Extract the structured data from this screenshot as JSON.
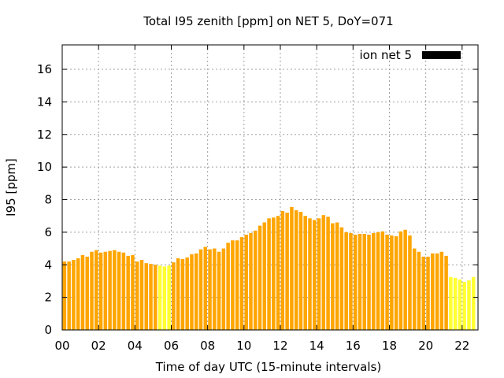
{
  "chart_data": {
    "type": "bar",
    "title": "Total I95 zenith [ppm] on NET 5, DoY=071",
    "xlabel": "Time of day UTC (15-minute intervals)",
    "ylabel": "I95 [ppm]",
    "xlim": [
      0,
      22.875
    ],
    "ylim": [
      0,
      17.5
    ],
    "x_ticks": [
      "00",
      "02",
      "04",
      "06",
      "08",
      "10",
      "12",
      "14",
      "16",
      "18",
      "20",
      "22"
    ],
    "y_ticks": [
      "0",
      "2",
      "4",
      "6",
      "8",
      "10",
      "12",
      "14",
      "16"
    ],
    "grid": true,
    "legend": {
      "position": "top-right",
      "entries": [
        "ion net 5"
      ]
    },
    "colors": {
      "normal": "#ffa500",
      "flagged": "#ffff33",
      "legend": "#000000"
    },
    "interval_hours": 0.25,
    "values": [
      4.2,
      4.2,
      4.3,
      4.4,
      4.6,
      4.5,
      4.8,
      4.9,
      4.75,
      4.8,
      4.85,
      4.9,
      4.8,
      4.75,
      4.55,
      4.6,
      4.2,
      4.3,
      4.1,
      4.05,
      4.0,
      3.95,
      3.9,
      3.95,
      4.15,
      4.4,
      4.35,
      4.45,
      4.65,
      4.7,
      4.95,
      5.1,
      4.95,
      5.0,
      4.8,
      5.0,
      5.35,
      5.5,
      5.5,
      5.7,
      5.85,
      5.95,
      6.1,
      6.4,
      6.6,
      6.85,
      6.9,
      7.0,
      7.3,
      7.2,
      7.55,
      7.35,
      7.25,
      7.0,
      6.85,
      6.75,
      6.85,
      7.05,
      6.95,
      6.55,
      6.6,
      6.3,
      6.0,
      5.95,
      5.85,
      5.9,
      5.9,
      5.85,
      5.95,
      6.0,
      6.05,
      5.85,
      5.8,
      5.75,
      6.05,
      6.15,
      5.8,
      5.0,
      4.8,
      4.5,
      4.5,
      4.7,
      4.7,
      4.8,
      4.55,
      3.25,
      3.2,
      3.1,
      2.95,
      3.05,
      3.25
    ],
    "flagged_indices": [
      21,
      22,
      23,
      85,
      86,
      87,
      88,
      89,
      90
    ]
  }
}
